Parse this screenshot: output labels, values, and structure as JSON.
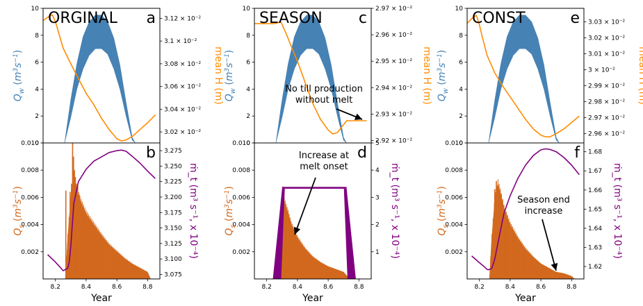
{
  "colors": {
    "water": "#4682b4",
    "meanH": "#ff8c00",
    "sediment": "#d2691e",
    "till": "#800080"
  },
  "xlabel": "Year",
  "chart_data": [
    {
      "id": "orginal_top",
      "type": "area",
      "title": "ORGINAL",
      "letter": "a",
      "xlim": [
        8.12,
        8.88
      ],
      "xticks": [],
      "ylim_left": [
        0,
        10
      ],
      "left_ticks": [
        "0",
        "2",
        "4",
        "6",
        "8",
        "10"
      ],
      "left_label": "Q_w (m^3 s^-1)",
      "ylim_right": [
        3.0103,
        3.1288
      ],
      "right_ticks": [
        3.02,
        3.04,
        3.06,
        3.08,
        3.1,
        3.12
      ],
      "right_tick_labels": [
        "3.02 × 10⁻²",
        "3.04 × 10⁻²",
        "3.06 × 10⁻²",
        "3.08 × 10⁻²",
        "3.1 × 10⁻²",
        "3.12 × 10⁻²"
      ],
      "right_label": "mean H (m)",
      "series": [
        {
          "kind": "band",
          "x": [
            8.26,
            8.3,
            8.34,
            8.38,
            8.42,
            8.46,
            8.5,
            8.54,
            8.58,
            8.62,
            8.66,
            8.7,
            8.72
          ],
          "upper": [
            0,
            3.2,
            5.9,
            7.9,
            9.0,
            9.5,
            9.5,
            9.0,
            7.8,
            5.8,
            3.0,
            0.4,
            0
          ],
          "lower": [
            0,
            1.9,
            4.0,
            5.5,
            6.5,
            7.0,
            7.0,
            6.6,
            5.5,
            4.0,
            2.0,
            0.2,
            0
          ]
        },
        {
          "kind": "line",
          "x": [
            8.12,
            8.15,
            8.18,
            8.2,
            8.22,
            8.25,
            8.3,
            8.35,
            8.4,
            8.45,
            8.5,
            8.55,
            8.6,
            8.63,
            8.66,
            8.7,
            8.75,
            8.8,
            8.85
          ],
          "y": [
            3.118,
            3.121,
            3.123,
            3.117,
            3.108,
            3.094,
            3.08,
            3.067,
            3.054,
            3.044,
            3.032,
            3.022,
            3.014,
            3.012,
            3.013,
            3.016,
            3.022,
            3.028,
            3.035
          ]
        }
      ]
    },
    {
      "id": "orginal_bottom",
      "type": "area",
      "letter": "b",
      "xlim": [
        8.12,
        8.88
      ],
      "xticks": [
        8.2,
        8.4,
        8.6,
        8.8
      ],
      "xtick_labels": [
        "8.2",
        "8.4",
        "8.6",
        "8.8"
      ],
      "ylim_left": [
        0,
        0.01
      ],
      "left_ticks": [
        "0.002",
        "0.004",
        "0.006",
        "0.008",
        "0.010"
      ],
      "left_label": "Q_s (m^3 s^-1)",
      "ylim_right": [
        3.0677,
        3.2875
      ],
      "right_ticks": [
        3.075,
        3.1,
        3.125,
        3.15,
        3.175,
        3.2,
        3.225,
        3.25,
        3.275
      ],
      "right_tick_labels": [
        "3.075",
        "3.100",
        "3.125",
        "3.150",
        "3.175",
        "3.200",
        "3.225",
        "3.250",
        "3.275"
      ],
      "right_label": "ṁ_t (m³ s⁻¹, x 10⁻⁴)",
      "series": [
        {
          "kind": "band",
          "x": [
            8.265,
            8.27,
            8.28,
            8.3,
            8.32,
            8.34,
            8.36,
            8.4,
            8.45,
            8.5,
            8.55,
            8.6,
            8.65,
            8.7,
            8.75,
            8.8,
            8.82
          ],
          "upper": [
            0,
            0.001,
            0.003,
            0.006,
            0.0075,
            0.0065,
            0.0058,
            0.0048,
            0.004,
            0.0032,
            0.0025,
            0.002,
            0.0015,
            0.0011,
            0.0008,
            0.0005,
            0
          ],
          "lower": [
            0,
            0,
            0,
            0,
            0,
            0,
            0,
            0,
            0,
            0,
            0,
            0,
            0,
            0,
            0,
            0,
            0
          ]
        },
        {
          "kind": "spikes",
          "x": [
            8.268,
            8.284,
            8.296,
            8.305,
            8.312,
            8.318,
            8.324,
            8.33,
            8.336,
            8.345,
            8.355,
            8.37,
            8.38
          ],
          "y": [
            0.0065,
            0.003,
            0.0064,
            0.007,
            0.01,
            0.009,
            0.008,
            0.0075,
            0.007,
            0.0068,
            0.0062,
            0.0055,
            0.005
          ]
        },
        {
          "kind": "line",
          "x": [
            8.15,
            8.2,
            8.23,
            8.25,
            8.265,
            8.28,
            8.29,
            8.3,
            8.32,
            8.35,
            8.4,
            8.45,
            8.5,
            8.55,
            8.6,
            8.63,
            8.66,
            8.7,
            8.75,
            8.8,
            8.85
          ],
          "y": [
            3.107,
            3.095,
            3.087,
            3.081,
            3.083,
            3.085,
            3.095,
            3.12,
            3.19,
            3.225,
            3.245,
            3.258,
            3.265,
            3.272,
            3.275,
            3.276,
            3.274,
            3.266,
            3.255,
            3.242,
            3.23
          ]
        }
      ]
    },
    {
      "id": "season_top",
      "type": "area",
      "title": "SEASON",
      "letter": "c",
      "xlim": [
        8.12,
        8.88
      ],
      "xticks": [],
      "ylim_left": [
        0,
        10
      ],
      "left_ticks": [
        "0",
        "2",
        "4",
        "6",
        "8",
        "10"
      ],
      "left_label": "Q_w (m^3 s^-1)",
      "ylim_right": [
        2.9191,
        2.97
      ],
      "right_ticks": [
        2.92,
        2.93,
        2.94,
        2.95,
        2.96,
        2.97
      ],
      "right_tick_labels": [
        "2.92 × 10⁻²",
        "2.93 × 10⁻²",
        "2.94 × 10⁻²",
        "2.95 × 10⁻²",
        "2.96 × 10⁻²",
        "2.97 × 10⁻²"
      ],
      "right_label": "mean H (m)",
      "annotation": "No till production\nwithout melt",
      "series": [
        {
          "kind": "band",
          "x": [
            8.26,
            8.3,
            8.34,
            8.38,
            8.42,
            8.46,
            8.5,
            8.54,
            8.58,
            8.62,
            8.66,
            8.7,
            8.72
          ],
          "upper": [
            0,
            3.2,
            5.9,
            7.9,
            9.0,
            9.5,
            9.5,
            9.0,
            7.8,
            5.8,
            3.0,
            0.4,
            0
          ],
          "lower": [
            0,
            1.9,
            4.0,
            5.5,
            6.5,
            7.0,
            7.0,
            6.6,
            5.5,
            4.0,
            2.0,
            0.2,
            0
          ]
        },
        {
          "kind": "line",
          "x": [
            8.12,
            8.2,
            8.25,
            8.27,
            8.29,
            8.3,
            8.31,
            8.33,
            8.35,
            8.4,
            8.45,
            8.5,
            8.55,
            8.6,
            8.63,
            8.66,
            8.7,
            8.72,
            8.75,
            8.8,
            8.85
          ],
          "y": [
            2.9642,
            2.9642,
            2.9642,
            2.9645,
            2.965,
            2.964,
            2.9625,
            2.96,
            2.957,
            2.95,
            2.942,
            2.934,
            2.928,
            2.924,
            2.9225,
            2.923,
            2.926,
            2.9275,
            2.9275,
            2.9275,
            2.9275
          ]
        }
      ]
    },
    {
      "id": "season_bottom",
      "type": "area",
      "letter": "d",
      "xlim": [
        8.12,
        8.88
      ],
      "xticks": [
        8.2,
        8.4,
        8.6,
        8.8
      ],
      "xtick_labels": [
        "8.2",
        "8.4",
        "8.6",
        "8.8"
      ],
      "ylim_left": [
        0,
        0.01
      ],
      "left_ticks": [
        "0.002",
        "0.004",
        "0.006",
        "0.008",
        "0.010"
      ],
      "left_label": "Q_s (m^3 s^-1)",
      "ylim_right": [
        0,
        5
      ],
      "right_ticks": [
        1,
        2,
        3,
        4,
        5
      ],
      "right_tick_labels": [
        "1",
        "2",
        "3",
        "4",
        "5"
      ],
      "right_label": "ṁ_t (m³ s⁻¹, x 10⁻⁴)",
      "annotation": "Increase at\nmelt onset",
      "series": [
        {
          "kind": "band",
          "x": [
            8.295,
            8.3,
            8.31,
            8.32,
            8.34,
            8.36,
            8.4,
            8.45,
            8.5,
            8.55,
            8.6,
            8.65,
            8.7,
            8.74
          ],
          "upper": [
            0,
            0.005,
            0.0058,
            0.0055,
            0.0048,
            0.004,
            0.003,
            0.0022,
            0.0016,
            0.0012,
            0.0009,
            0.0007,
            0.0005,
            0
          ],
          "lower": [
            0,
            0,
            0,
            0,
            0,
            0,
            0,
            0,
            0,
            0,
            0,
            0,
            0,
            0
          ]
        },
        {
          "kind": "spikes",
          "x": [
            8.305,
            8.312,
            8.318,
            8.326,
            8.334
          ],
          "y": [
            0.0068,
            0.006,
            0.0055,
            0.005,
            0.0045
          ]
        },
        {
          "kind": "tillband",
          "x_rise": [
            8.24,
            8.3
          ],
          "x_fall": [
            8.72,
            8.78
          ],
          "level": 3.32,
          "thickness": 0.06
        }
      ]
    },
    {
      "id": "const_top",
      "type": "area",
      "title": "CONST",
      "letter": "e",
      "xlim": [
        8.12,
        8.88
      ],
      "xticks": [],
      "ylim_left": [
        0,
        10
      ],
      "left_ticks": [
        "0",
        "2",
        "4",
        "6",
        "8",
        "10"
      ],
      "left_label": "Q_w (m^3 s^-1)",
      "ylim_right": [
        2.9542,
        3.0384
      ],
      "right_ticks": [
        2.96,
        2.97,
        2.98,
        2.99,
        3.0,
        3.01,
        3.02,
        3.03
      ],
      "right_tick_labels": [
        "2.96 × 10⁻²",
        "2.97 × 10⁻²",
        "2.98 × 10⁻²",
        "2.99 × 10⁻²",
        "3 × 10⁻²",
        "3.01 × 10⁻²",
        "3.02 × 10⁻²",
        "3.03 × 10⁻²"
      ],
      "right_label": "mean H (m)",
      "series": [
        {
          "kind": "band",
          "x": [
            8.26,
            8.3,
            8.34,
            8.38,
            8.42,
            8.46,
            8.5,
            8.54,
            8.58,
            8.62,
            8.66,
            8.7,
            8.72
          ],
          "upper": [
            0,
            3.2,
            5.9,
            7.9,
            9.0,
            9.5,
            9.5,
            9.0,
            7.8,
            5.8,
            3.0,
            0.4,
            0
          ],
          "lower": [
            0,
            1.9,
            4.0,
            5.5,
            6.5,
            7.0,
            7.0,
            6.6,
            5.5,
            4.0,
            2.0,
            0.2,
            0
          ]
        },
        {
          "kind": "line",
          "x": [
            8.12,
            8.15,
            8.18,
            8.2,
            8.22,
            8.25,
            8.3,
            8.35,
            8.4,
            8.45,
            8.5,
            8.55,
            8.6,
            8.63,
            8.66,
            8.7,
            8.75,
            8.8,
            8.85
          ],
          "y": [
            3.029,
            3.032,
            3.034,
            3.028,
            3.02,
            3.009,
            2.998,
            2.99,
            2.983,
            2.976,
            2.969,
            2.963,
            2.959,
            2.958,
            2.958,
            2.96,
            2.963,
            2.967,
            2.971
          ]
        }
      ]
    },
    {
      "id": "const_bottom",
      "type": "area",
      "letter": "f",
      "xlim": [
        8.12,
        8.88
      ],
      "xticks": [
        8.2,
        8.4,
        8.6,
        8.8
      ],
      "xtick_labels": [
        "8.2",
        "8.4",
        "8.6",
        "8.8"
      ],
      "ylim_left": [
        0,
        0.01
      ],
      "left_ticks": [
        "0.002",
        "0.004",
        "0.006",
        "0.008",
        "0.010"
      ],
      "left_label": "Q_s (m^3 s^-1)",
      "ylim_right": [
        1.6135,
        1.6846
      ],
      "right_ticks": [
        1.62,
        1.63,
        1.64,
        1.65,
        1.66,
        1.67,
        1.68
      ],
      "right_tick_labels": [
        "1.62",
        "1.63",
        "1.64",
        "1.65",
        "1.66",
        "1.67",
        "1.68"
      ],
      "right_label": "ṁ_t (m³ s⁻¹, x 10⁻⁴)",
      "annotation": "Season end\nincrease",
      "series": [
        {
          "kind": "band",
          "x": [
            8.265,
            8.27,
            8.28,
            8.3,
            8.32,
            8.34,
            8.36,
            8.4,
            8.45,
            8.5,
            8.55,
            8.6,
            8.65,
            8.7,
            8.75,
            8.8,
            8.82
          ],
          "upper": [
            0,
            0.001,
            0.003,
            0.0058,
            0.007,
            0.0062,
            0.0052,
            0.004,
            0.003,
            0.0022,
            0.0016,
            0.0011,
            0.0008,
            0.0005,
            0.0004,
            0.0002,
            0
          ],
          "lower": [
            0,
            0,
            0,
            0,
            0,
            0,
            0,
            0,
            0,
            0,
            0,
            0,
            0,
            0,
            0,
            0,
            0
          ]
        },
        {
          "kind": "spikes",
          "x": [
            8.3,
            8.31,
            8.318,
            8.326,
            8.334,
            8.345,
            8.36
          ],
          "y": [
            0.0066,
            0.0072,
            0.0068,
            0.0064,
            0.006,
            0.0056,
            0.005
          ]
        },
        {
          "kind": "line",
          "x": [
            8.15,
            8.2,
            8.23,
            8.25,
            8.26,
            8.28,
            8.3,
            8.33,
            8.36,
            8.4,
            8.45,
            8.5,
            8.55,
            8.6,
            8.63,
            8.66,
            8.7,
            8.75,
            8.8,
            8.85
          ],
          "y": [
            1.6255,
            1.622,
            1.62,
            1.6185,
            1.6183,
            1.619,
            1.624,
            1.636,
            1.648,
            1.657,
            1.666,
            1.673,
            1.678,
            1.681,
            1.6815,
            1.6812,
            1.68,
            1.677,
            1.673,
            1.668
          ]
        }
      ]
    }
  ]
}
